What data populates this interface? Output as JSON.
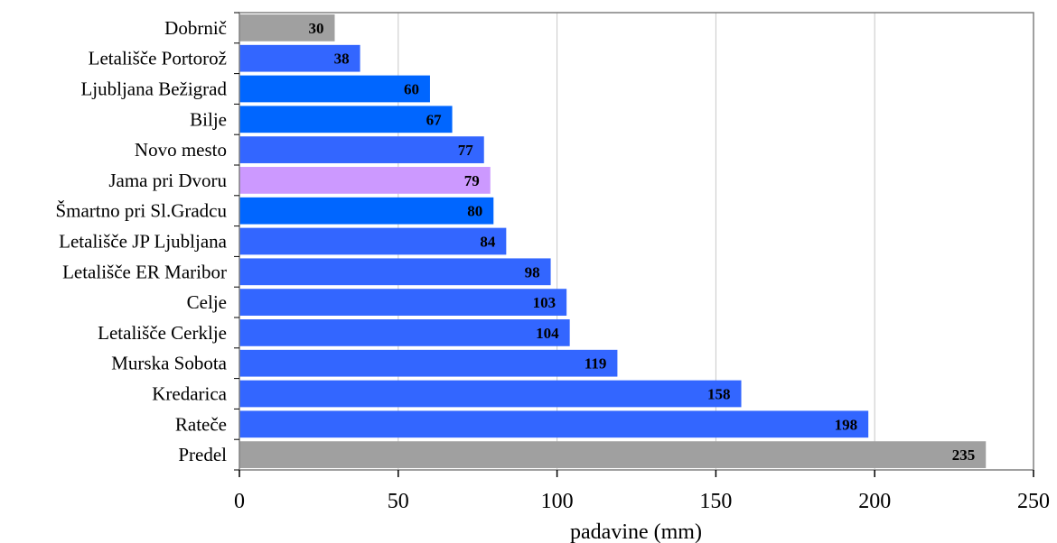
{
  "chart_data": {
    "type": "bar",
    "orientation": "horizontal",
    "categories": [
      "Dobrnič",
      "Letališče Portorož",
      "Ljubljana Bežigrad",
      "Bilje",
      "Novo mesto",
      "Jama pri Dvoru",
      "Šmartno pri Sl.Gradcu",
      "Letališče JP Ljubljana",
      "Letališče ER Maribor",
      "Celje",
      "Letališče Cerklje",
      "Murska Sobota",
      "Kredarica",
      "Rateče",
      "Predel"
    ],
    "values": [
      30,
      38,
      60,
      67,
      77,
      79,
      80,
      84,
      98,
      103,
      104,
      119,
      158,
      198,
      235
    ],
    "data_labels": [
      "30",
      "38",
      "60",
      "67",
      "77",
      "79",
      "80",
      "84",
      "98",
      "103",
      "104",
      "119",
      "158",
      "198",
      "235"
    ],
    "bar_colors": [
      "#a0a0a0",
      "#3366ff",
      "#0066ff",
      "#0066ff",
      "#3366ff",
      "#cc99ff",
      "#0066ff",
      "#3366ff",
      "#3366ff",
      "#3366ff",
      "#3366ff",
      "#3366ff",
      "#3366ff",
      "#3366ff",
      "#a0a0a0"
    ],
    "xlabel": "padavine (mm)",
    "ylabel": "",
    "title": "",
    "xlim": [
      0,
      250
    ],
    "xticks": [
      0,
      50,
      100,
      150,
      200,
      250
    ],
    "xtick_labels": [
      "0",
      "50",
      "100",
      "150",
      "200",
      "250"
    ],
    "grid": "vertical",
    "legend": "none"
  }
}
